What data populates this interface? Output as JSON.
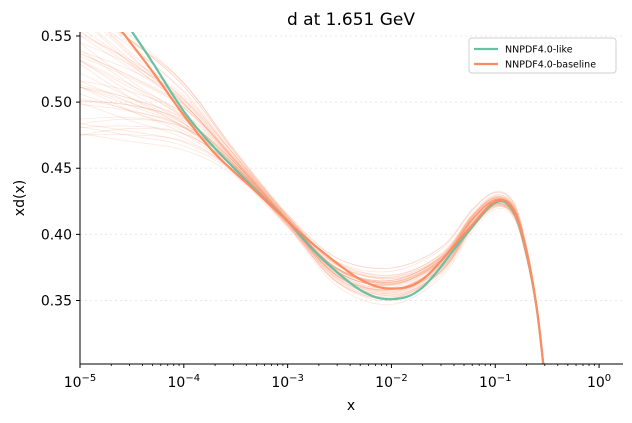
{
  "chart_data": {
    "type": "line",
    "title": "d at 1.651 GeV",
    "xlabel": "x",
    "ylabel": "xd(x)",
    "xscale": "log",
    "xlim": [
      1e-05,
      1.7
    ],
    "ylim": [
      0.302,
      0.553
    ],
    "x_ticks": [
      {
        "value": 1e-05,
        "label": "10",
        "exp": "−5"
      },
      {
        "value": 0.0001,
        "label": "10",
        "exp": "−4"
      },
      {
        "value": 0.001,
        "label": "10",
        "exp": "−3"
      },
      {
        "value": 0.01,
        "label": "10",
        "exp": "−2"
      },
      {
        "value": 0.1,
        "label": "10",
        "exp": "−1"
      },
      {
        "value": 1,
        "label": "10",
        "exp": "0"
      }
    ],
    "y_ticks": [
      {
        "value": 0.35,
        "label": "0.35"
      },
      {
        "value": 0.4,
        "label": "0.40"
      },
      {
        "value": 0.45,
        "label": "0.45"
      },
      {
        "value": 0.5,
        "label": "0.50"
      },
      {
        "value": 0.55,
        "label": "0.55"
      }
    ],
    "grid": "horizontal dotted",
    "legend": {
      "placement": "top-right",
      "entries": [
        {
          "name": "NNPDF4.0-like",
          "color": "#66c2a5"
        },
        {
          "name": "NNPDF4.0-baseline",
          "color": "#fc8d62"
        }
      ]
    },
    "series": [
      {
        "name": "NNPDF4.0-like",
        "color": "#66c2a5",
        "x": [
          3e-05,
          5e-05,
          0.0001,
          0.0002,
          0.0005,
          0.001,
          0.002,
          0.005,
          0.01,
          0.02,
          0.05,
          0.1,
          0.15,
          0.2,
          0.25,
          0.29
        ],
        "y": [
          0.556,
          0.53,
          0.493,
          0.465,
          0.433,
          0.41,
          0.384,
          0.358,
          0.351,
          0.36,
          0.398,
          0.424,
          0.417,
          0.385,
          0.345,
          0.302
        ]
      },
      {
        "name": "NNPDF4.0-baseline",
        "color": "#fc8d62",
        "x": [
          2.5e-05,
          5e-05,
          0.0001,
          0.0002,
          0.0005,
          0.001,
          0.002,
          0.005,
          0.01,
          0.02,
          0.05,
          0.1,
          0.15,
          0.2,
          0.25,
          0.29
        ],
        "y": [
          0.554,
          0.523,
          0.49,
          0.461,
          0.432,
          0.41,
          0.389,
          0.366,
          0.359,
          0.366,
          0.4,
          0.425,
          0.418,
          0.386,
          0.345,
          0.302
        ]
      }
    ],
    "replicas": {
      "color": "#fc8d62",
      "count": 50,
      "x": [
        1e-05,
        3e-05,
        0.0001,
        0.0003,
        0.001,
        0.003,
        0.01,
        0.03,
        0.06,
        0.1,
        0.15,
        0.2,
        0.25,
        0.29
      ],
      "center": [
        0.53,
        0.512,
        0.49,
        0.455,
        0.41,
        0.371,
        0.36,
        0.378,
        0.41,
        0.425,
        0.418,
        0.386,
        0.345,
        0.302
      ],
      "spread": [
        0.055,
        0.045,
        0.03,
        0.012,
        0.006,
        0.013,
        0.017,
        0.014,
        0.01,
        0.008,
        0.007,
        0.006,
        0.004,
        0.0
      ]
    }
  }
}
